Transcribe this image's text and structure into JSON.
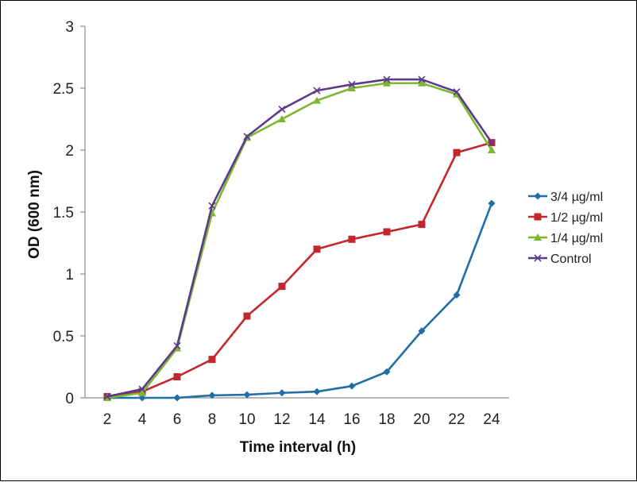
{
  "chart_data": {
    "type": "line",
    "title": "",
    "xlabel": "Time interval (h)",
    "ylabel": "OD (600 nm)",
    "ylim": [
      0,
      3
    ],
    "y_ticks": [
      "0",
      "0.5",
      "1",
      "1.5",
      "2",
      "2.5",
      "3"
    ],
    "x": [
      "2",
      "4",
      "6",
      "8",
      "10",
      "12",
      "14",
      "16",
      "18",
      "20",
      "22",
      "24"
    ],
    "grid": false,
    "legend_position": "right",
    "series": [
      {
        "name": "3/4 µg/ml",
        "color": "#1f6fa6",
        "marker": "diamond",
        "values": [
          0.0,
          0.0,
          0.0,
          0.02,
          0.025,
          0.04,
          0.05,
          0.095,
          0.21,
          0.54,
          0.83,
          1.57
        ]
      },
      {
        "name": "1/2 µg/ml",
        "color": "#c1272d",
        "marker": "square",
        "values": [
          0.01,
          0.05,
          0.17,
          0.31,
          0.66,
          0.9,
          1.2,
          1.28,
          1.34,
          1.4,
          1.98,
          2.06
        ]
      },
      {
        "name": "1/4 µg/ml",
        "color": "#7db731",
        "marker": "triangle",
        "values": [
          0.0,
          0.04,
          0.4,
          1.49,
          2.1,
          2.25,
          2.4,
          2.5,
          2.54,
          2.54,
          2.45,
          2.0
        ]
      },
      {
        "name": "Control",
        "color": "#5b3a8c",
        "marker": "x",
        "values": [
          0.01,
          0.07,
          0.42,
          1.55,
          2.11,
          2.33,
          2.48,
          2.53,
          2.57,
          2.57,
          2.47,
          2.06
        ]
      }
    ]
  }
}
